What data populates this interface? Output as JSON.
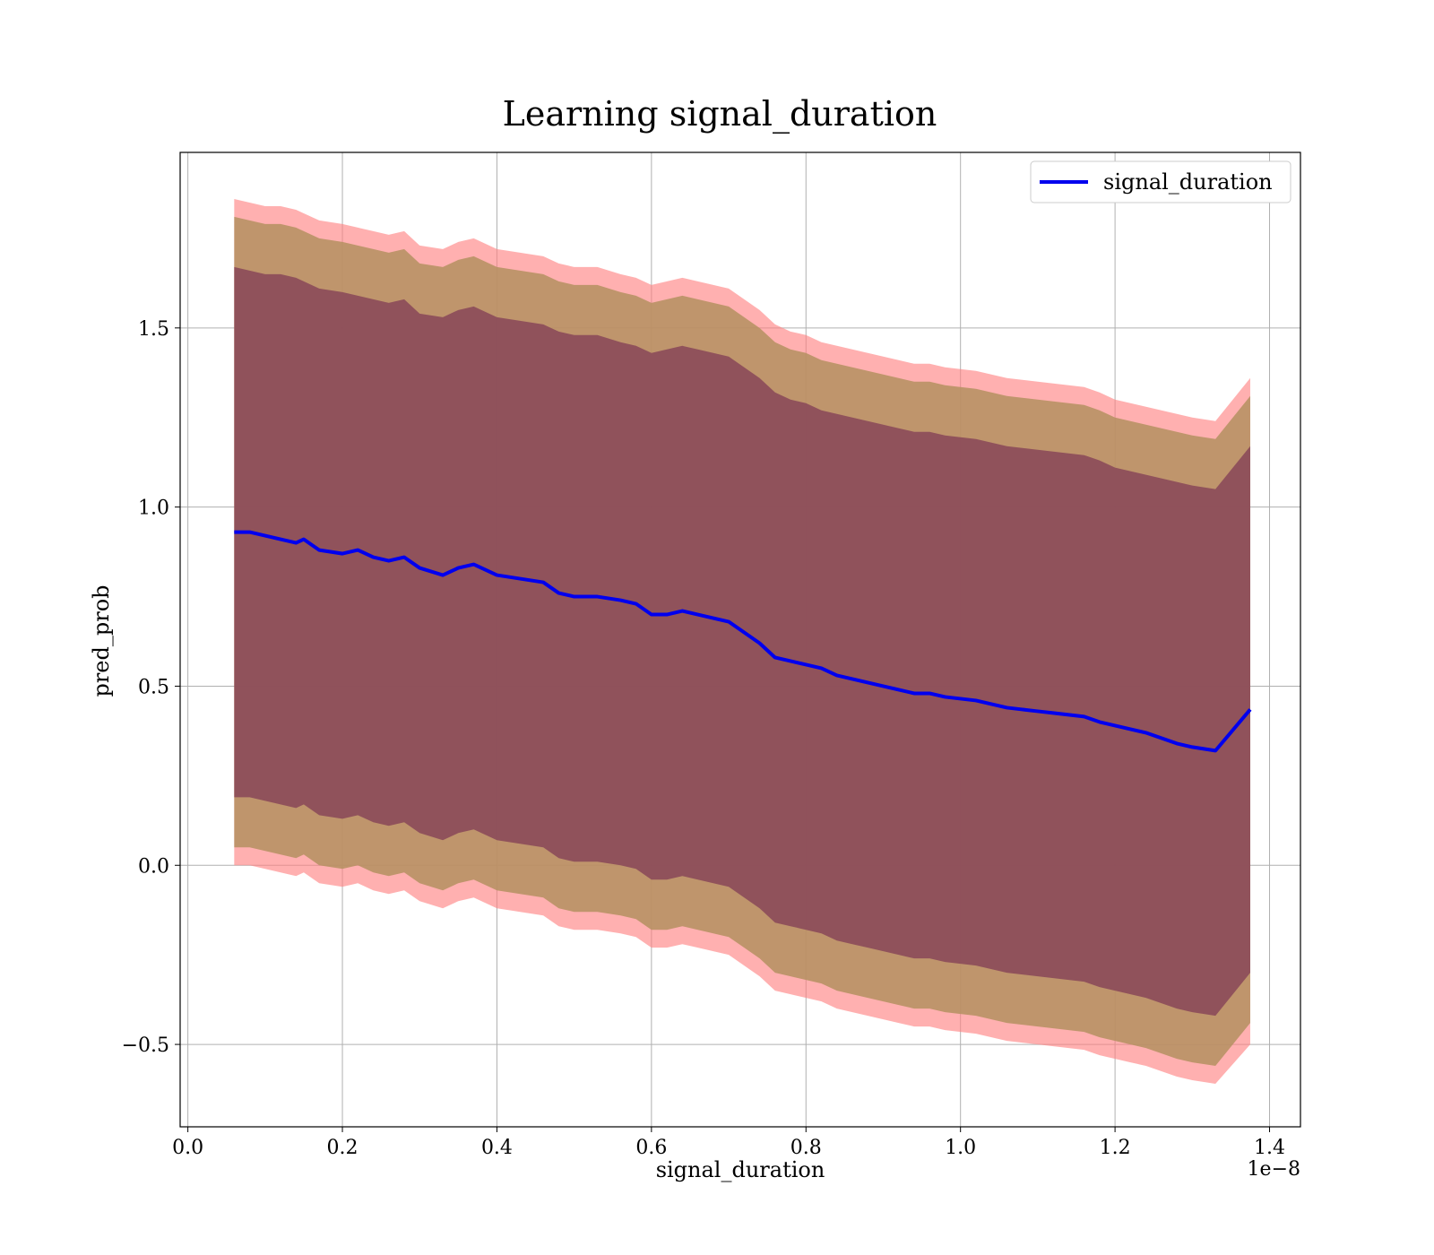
{
  "chart_data": {
    "type": "line",
    "title": "Learning signal_duration",
    "xlabel": "signal_duration",
    "ylabel": "pred_prob",
    "x_offset_label": "1e−8",
    "xlim": [
      -0.01,
      1.44
    ],
    "ylim": [
      -0.73,
      1.99
    ],
    "x_ticks": [
      0.0,
      0.2,
      0.4,
      0.6,
      0.8,
      1.0,
      1.2,
      1.4
    ],
    "x_tick_labels": [
      "0.0",
      "0.2",
      "0.4",
      "0.6",
      "0.8",
      "1.0",
      "1.2",
      "1.4"
    ],
    "y_ticks": [
      -0.5,
      0.0,
      0.5,
      1.0,
      1.5
    ],
    "y_tick_labels": [
      "−0.5",
      "0.0",
      "0.5",
      "1.0",
      "1.5"
    ],
    "grid": true,
    "legend_position": "top-right",
    "colors": {
      "line": "#0000ee",
      "outer_band": "#ff8080",
      "middle_band": "#b49060",
      "inner_band": "#8b4a5a",
      "grid": "#b0b0b0"
    },
    "series": [
      {
        "name": "signal_duration",
        "x": [
          0.06,
          0.08,
          0.1,
          0.12,
          0.14,
          0.15,
          0.17,
          0.2,
          0.22,
          0.24,
          0.26,
          0.28,
          0.3,
          0.33,
          0.35,
          0.37,
          0.4,
          0.43,
          0.46,
          0.48,
          0.5,
          0.53,
          0.56,
          0.58,
          0.6,
          0.62,
          0.64,
          0.66,
          0.68,
          0.7,
          0.72,
          0.74,
          0.76,
          0.78,
          0.8,
          0.82,
          0.84,
          0.86,
          0.88,
          0.9,
          0.92,
          0.94,
          0.96,
          0.98,
          1.0,
          1.02,
          1.04,
          1.06,
          1.08,
          1.1,
          1.12,
          1.14,
          1.16,
          1.18,
          1.2,
          1.22,
          1.24,
          1.26,
          1.28,
          1.3,
          1.33,
          1.375
        ],
        "y": [
          0.93,
          0.93,
          0.92,
          0.91,
          0.9,
          0.91,
          0.88,
          0.87,
          0.88,
          0.86,
          0.85,
          0.86,
          0.83,
          0.81,
          0.83,
          0.84,
          0.81,
          0.8,
          0.79,
          0.76,
          0.75,
          0.75,
          0.74,
          0.73,
          0.7,
          0.7,
          0.71,
          0.7,
          0.69,
          0.68,
          0.65,
          0.62,
          0.58,
          0.57,
          0.56,
          0.55,
          0.53,
          0.52,
          0.51,
          0.5,
          0.49,
          0.48,
          0.48,
          0.47,
          0.465,
          0.46,
          0.45,
          0.44,
          0.435,
          0.43,
          0.425,
          0.42,
          0.415,
          0.4,
          0.39,
          0.38,
          0.37,
          0.355,
          0.34,
          0.33,
          0.32,
          0.435
        ],
        "bands": [
          {
            "label": "outer",
            "upper": [
              1.86,
              1.85,
              1.84,
              1.84,
              1.83,
              1.82,
              1.8,
              1.79,
              1.78,
              1.77,
              1.76,
              1.77,
              1.73,
              1.72,
              1.74,
              1.75,
              1.72,
              1.71,
              1.7,
              1.68,
              1.67,
              1.67,
              1.65,
              1.64,
              1.62,
              1.63,
              1.64,
              1.63,
              1.62,
              1.61,
              1.58,
              1.55,
              1.51,
              1.49,
              1.48,
              1.46,
              1.45,
              1.44,
              1.43,
              1.42,
              1.41,
              1.4,
              1.4,
              1.39,
              1.385,
              1.38,
              1.37,
              1.36,
              1.355,
              1.35,
              1.345,
              1.34,
              1.335,
              1.32,
              1.3,
              1.29,
              1.28,
              1.27,
              1.26,
              1.25,
              1.24,
              1.36
            ],
            "lower": [
              0.0,
              0.0,
              -0.01,
              -0.02,
              -0.03,
              -0.02,
              -0.05,
              -0.06,
              -0.05,
              -0.07,
              -0.08,
              -0.07,
              -0.1,
              -0.12,
              -0.1,
              -0.09,
              -0.12,
              -0.13,
              -0.14,
              -0.17,
              -0.18,
              -0.18,
              -0.19,
              -0.2,
              -0.23,
              -0.23,
              -0.22,
              -0.23,
              -0.24,
              -0.25,
              -0.28,
              -0.31,
              -0.35,
              -0.36,
              -0.37,
              -0.38,
              -0.4,
              -0.41,
              -0.42,
              -0.43,
              -0.44,
              -0.45,
              -0.45,
              -0.46,
              -0.465,
              -0.47,
              -0.48,
              -0.49,
              -0.495,
              -0.5,
              -0.505,
              -0.51,
              -0.515,
              -0.53,
              -0.54,
              -0.55,
              -0.56,
              -0.575,
              -0.59,
              -0.6,
              -0.61,
              -0.5
            ]
          },
          {
            "label": "middle",
            "upper": [
              1.81,
              1.8,
              1.79,
              1.79,
              1.78,
              1.77,
              1.75,
              1.74,
              1.73,
              1.72,
              1.71,
              1.72,
              1.68,
              1.67,
              1.69,
              1.7,
              1.67,
              1.66,
              1.65,
              1.63,
              1.62,
              1.62,
              1.6,
              1.59,
              1.57,
              1.58,
              1.59,
              1.58,
              1.57,
              1.56,
              1.53,
              1.5,
              1.46,
              1.44,
              1.43,
              1.41,
              1.4,
              1.39,
              1.38,
              1.37,
              1.36,
              1.35,
              1.35,
              1.34,
              1.335,
              1.33,
              1.32,
              1.31,
              1.305,
              1.3,
              1.295,
              1.29,
              1.285,
              1.27,
              1.25,
              1.24,
              1.23,
              1.22,
              1.21,
              1.2,
              1.19,
              1.31
            ],
            "lower": [
              0.05,
              0.05,
              0.04,
              0.03,
              0.02,
              0.03,
              0.0,
              -0.01,
              0.0,
              -0.02,
              -0.03,
              -0.02,
              -0.05,
              -0.07,
              -0.05,
              -0.04,
              -0.07,
              -0.08,
              -0.09,
              -0.12,
              -0.13,
              -0.13,
              -0.14,
              -0.15,
              -0.18,
              -0.18,
              -0.17,
              -0.18,
              -0.19,
              -0.2,
              -0.23,
              -0.26,
              -0.3,
              -0.31,
              -0.32,
              -0.33,
              -0.35,
              -0.36,
              -0.37,
              -0.38,
              -0.39,
              -0.4,
              -0.4,
              -0.41,
              -0.415,
              -0.42,
              -0.43,
              -0.44,
              -0.445,
              -0.45,
              -0.455,
              -0.46,
              -0.465,
              -0.48,
              -0.49,
              -0.5,
              -0.51,
              -0.525,
              -0.54,
              -0.55,
              -0.56,
              -0.44
            ]
          },
          {
            "label": "inner",
            "upper": [
              1.67,
              1.66,
              1.65,
              1.65,
              1.64,
              1.63,
              1.61,
              1.6,
              1.59,
              1.58,
              1.57,
              1.58,
              1.54,
              1.53,
              1.55,
              1.56,
              1.53,
              1.52,
              1.51,
              1.49,
              1.48,
              1.48,
              1.46,
              1.45,
              1.43,
              1.44,
              1.45,
              1.44,
              1.43,
              1.42,
              1.39,
              1.36,
              1.32,
              1.3,
              1.29,
              1.27,
              1.26,
              1.25,
              1.24,
              1.23,
              1.22,
              1.21,
              1.21,
              1.2,
              1.195,
              1.19,
              1.18,
              1.17,
              1.165,
              1.16,
              1.155,
              1.15,
              1.145,
              1.13,
              1.11,
              1.1,
              1.09,
              1.08,
              1.07,
              1.06,
              1.05,
              1.17
            ],
            "lower": [
              0.19,
              0.19,
              0.18,
              0.17,
              0.16,
              0.17,
              0.14,
              0.13,
              0.14,
              0.12,
              0.11,
              0.12,
              0.09,
              0.07,
              0.09,
              0.1,
              0.07,
              0.06,
              0.05,
              0.02,
              0.01,
              0.01,
              0.0,
              -0.01,
              -0.04,
              -0.04,
              -0.03,
              -0.04,
              -0.05,
              -0.06,
              -0.09,
              -0.12,
              -0.16,
              -0.17,
              -0.18,
              -0.19,
              -0.21,
              -0.22,
              -0.23,
              -0.24,
              -0.25,
              -0.26,
              -0.26,
              -0.27,
              -0.275,
              -0.28,
              -0.29,
              -0.3,
              -0.305,
              -0.31,
              -0.315,
              -0.32,
              -0.325,
              -0.34,
              -0.35,
              -0.36,
              -0.37,
              -0.385,
              -0.4,
              -0.41,
              -0.42,
              -0.3
            ]
          }
        ]
      }
    ]
  }
}
